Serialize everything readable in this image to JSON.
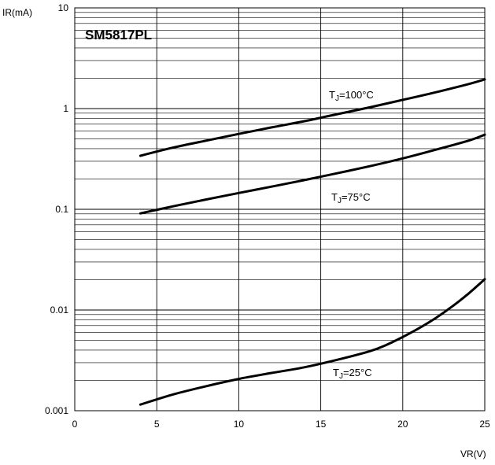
{
  "chart_data": {
    "type": "line",
    "title": "SM5817PL",
    "xlabel": "VR(V)",
    "ylabel": "IR(mA)",
    "xlim": [
      0,
      25
    ],
    "ylim": [
      0.001,
      10
    ],
    "yscale": "log",
    "grid": true,
    "x_ticks": [
      "0",
      "5",
      "10",
      "15",
      "20",
      "25"
    ],
    "y_ticks": [
      "10",
      "1",
      "0.1",
      "0.01",
      "0.001"
    ],
    "series": [
      {
        "name": "TJ=100°C",
        "label_main": "T",
        "label_sub": "J",
        "label_rest": "=100°C",
        "x": [
          4,
          6,
          8,
          10,
          12,
          14,
          16,
          18,
          20,
          22,
          24,
          25
        ],
        "y": [
          0.34,
          0.41,
          0.48,
          0.56,
          0.65,
          0.75,
          0.88,
          1.03,
          1.22,
          1.45,
          1.75,
          1.95
        ]
      },
      {
        "name": "TJ=75°C",
        "label_main": "T",
        "label_sub": "J",
        "label_rest": "=75°C",
        "x": [
          4,
          6,
          8,
          10,
          12,
          14,
          16,
          18,
          20,
          22,
          24,
          25
        ],
        "y": [
          0.091,
          0.107,
          0.125,
          0.145,
          0.168,
          0.195,
          0.228,
          0.268,
          0.32,
          0.39,
          0.48,
          0.55
        ]
      },
      {
        "name": "TJ=25°C",
        "label_main": "T",
        "label_sub": "J",
        "label_rest": "=25°C",
        "x": [
          4,
          6,
          8,
          10,
          12,
          14,
          16,
          18,
          19,
          20,
          21,
          22,
          23,
          24,
          25
        ],
        "y": [
          0.00115,
          0.00145,
          0.00175,
          0.00207,
          0.00237,
          0.0027,
          0.0032,
          0.0039,
          0.0045,
          0.0054,
          0.0066,
          0.0083,
          0.0108,
          0.0145,
          0.0202
        ]
      }
    ]
  }
}
